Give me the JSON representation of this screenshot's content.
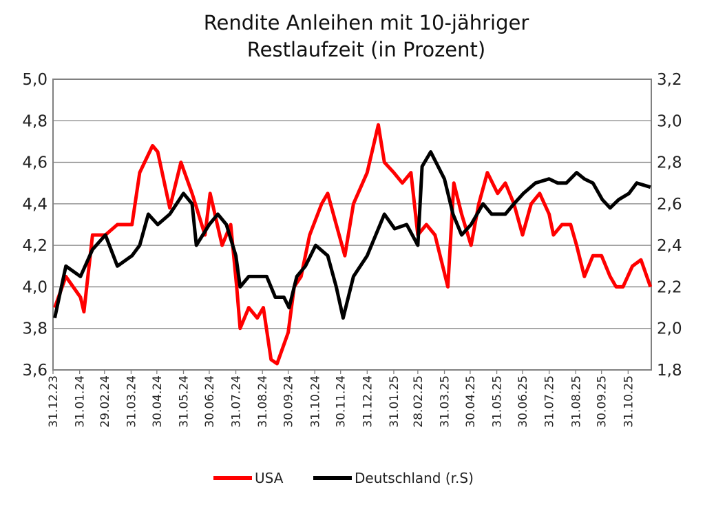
{
  "chart_data": {
    "type": "line",
    "title": [
      "Rendite Anleihen mit 10-jähriger",
      "Restlaufzeit (in Prozent)"
    ],
    "xlabel": "",
    "ylabel": "",
    "y_left": {
      "lim": [
        3.6,
        5.0
      ],
      "ticks": [
        "3,6",
        "3,8",
        "4,0",
        "4,2",
        "4,4",
        "4,6",
        "4,8",
        "5,0"
      ]
    },
    "y_right": {
      "lim": [
        1.8,
        3.2
      ],
      "ticks": [
        "1,8",
        "2,0",
        "2,2",
        "2,4",
        "2,6",
        "2,8",
        "3,0",
        "3,2"
      ]
    },
    "x_ticks": [
      "31.12.23",
      "31.01.24",
      "29.02.24",
      "31.03.24",
      "30.04.24",
      "31.05.24",
      "30.06.24",
      "31.07.24",
      "31.08.24",
      "30.09.24",
      "31.10.24",
      "30.11.24",
      "31.12.24",
      "31.01.25",
      "28.02.25",
      "31.03.25",
      "30.04.25",
      "31.05.25",
      "30.06.25",
      "31.07.25",
      "31.08.25",
      "30.09.25",
      "31.10.25"
    ],
    "grid": true,
    "legend_position": "bottom",
    "series": [
      {
        "name": "USA",
        "axis": "left",
        "color": "#ff0000",
        "points": [
          [
            "2024-01-02",
            3.9
          ],
          [
            "2024-01-15",
            4.05
          ],
          [
            "2024-02-01",
            3.95
          ],
          [
            "2024-02-05",
            3.88
          ],
          [
            "2024-02-15",
            4.25
          ],
          [
            "2024-03-01",
            4.25
          ],
          [
            "2024-03-15",
            4.3
          ],
          [
            "2024-04-01",
            4.3
          ],
          [
            "2024-04-10",
            4.55
          ],
          [
            "2024-04-25",
            4.68
          ],
          [
            "2024-05-01",
            4.65
          ],
          [
            "2024-05-15",
            4.38
          ],
          [
            "2024-05-28",
            4.6
          ],
          [
            "2024-06-10",
            4.45
          ],
          [
            "2024-06-25",
            4.25
          ],
          [
            "2024-07-01",
            4.45
          ],
          [
            "2024-07-15",
            4.2
          ],
          [
            "2024-07-25",
            4.3
          ],
          [
            "2024-08-01",
            4.0
          ],
          [
            "2024-08-05",
            3.8
          ],
          [
            "2024-08-15",
            3.9
          ],
          [
            "2024-08-25",
            3.85
          ],
          [
            "2024-09-01",
            3.9
          ],
          [
            "2024-09-10",
            3.65
          ],
          [
            "2024-09-17",
            3.63
          ],
          [
            "2024-09-30",
            3.78
          ],
          [
            "2024-10-07",
            4.0
          ],
          [
            "2024-10-15",
            4.05
          ],
          [
            "2024-10-25",
            4.25
          ],
          [
            "2024-11-08",
            4.4
          ],
          [
            "2024-11-15",
            4.45
          ],
          [
            "2024-11-25",
            4.3
          ],
          [
            "2024-12-05",
            4.15
          ],
          [
            "2024-12-15",
            4.4
          ],
          [
            "2024-12-31",
            4.55
          ],
          [
            "2025-01-13",
            4.78
          ],
          [
            "2025-01-20",
            4.6
          ],
          [
            "2025-01-31",
            4.55
          ],
          [
            "2025-02-10",
            4.5
          ],
          [
            "2025-02-20",
            4.55
          ],
          [
            "2025-02-28",
            4.25
          ],
          [
            "2025-03-10",
            4.3
          ],
          [
            "2025-03-20",
            4.25
          ],
          [
            "2025-04-04",
            4.0
          ],
          [
            "2025-04-11",
            4.5
          ],
          [
            "2025-04-20",
            4.35
          ],
          [
            "2025-05-01",
            4.2
          ],
          [
            "2025-05-10",
            4.4
          ],
          [
            "2025-05-20",
            4.55
          ],
          [
            "2025-06-01",
            4.45
          ],
          [
            "2025-06-10",
            4.5
          ],
          [
            "2025-06-20",
            4.4
          ],
          [
            "2025-06-30",
            4.25
          ],
          [
            "2025-07-10",
            4.4
          ],
          [
            "2025-07-20",
            4.45
          ],
          [
            "2025-07-31",
            4.35
          ],
          [
            "2025-08-05",
            4.25
          ],
          [
            "2025-08-15",
            4.3
          ],
          [
            "2025-08-25",
            4.3
          ],
          [
            "2025-09-01",
            4.2
          ],
          [
            "2025-09-10",
            4.05
          ],
          [
            "2025-09-20",
            4.15
          ],
          [
            "2025-09-30",
            4.15
          ],
          [
            "2025-10-10",
            4.05
          ],
          [
            "2025-10-17",
            4.0
          ],
          [
            "2025-10-25",
            4.0
          ],
          [
            "2025-11-05",
            4.1
          ],
          [
            "2025-11-15",
            4.13
          ],
          [
            "2025-11-26",
            4.0
          ]
        ]
      },
      {
        "name": "Deutschland (r.S)",
        "axis": "right",
        "color": "#000000",
        "points": [
          [
            "2024-01-02",
            2.05
          ],
          [
            "2024-01-15",
            2.3
          ],
          [
            "2024-02-01",
            2.25
          ],
          [
            "2024-02-15",
            2.38
          ],
          [
            "2024-03-01",
            2.45
          ],
          [
            "2024-03-15",
            2.3
          ],
          [
            "2024-04-01",
            2.35
          ],
          [
            "2024-04-10",
            2.4
          ],
          [
            "2024-04-20",
            2.55
          ],
          [
            "2024-05-01",
            2.5
          ],
          [
            "2024-05-15",
            2.55
          ],
          [
            "2024-05-31",
            2.65
          ],
          [
            "2024-06-10",
            2.6
          ],
          [
            "2024-06-15",
            2.4
          ],
          [
            "2024-06-30",
            2.5
          ],
          [
            "2024-07-10",
            2.55
          ],
          [
            "2024-07-20",
            2.5
          ],
          [
            "2024-07-31",
            2.35
          ],
          [
            "2024-08-05",
            2.2
          ],
          [
            "2024-08-15",
            2.25
          ],
          [
            "2024-08-25",
            2.25
          ],
          [
            "2024-09-05",
            2.25
          ],
          [
            "2024-09-15",
            2.15
          ],
          [
            "2024-09-25",
            2.15
          ],
          [
            "2024-10-01",
            2.1
          ],
          [
            "2024-10-10",
            2.25
          ],
          [
            "2024-10-20",
            2.3
          ],
          [
            "2024-11-01",
            2.4
          ],
          [
            "2024-11-15",
            2.35
          ],
          [
            "2024-11-25",
            2.2
          ],
          [
            "2024-12-03",
            2.05
          ],
          [
            "2024-12-15",
            2.25
          ],
          [
            "2024-12-31",
            2.35
          ],
          [
            "2025-01-10",
            2.45
          ],
          [
            "2025-01-20",
            2.55
          ],
          [
            "2025-02-01",
            2.48
          ],
          [
            "2025-02-15",
            2.5
          ],
          [
            "2025-02-28",
            2.4
          ],
          [
            "2025-03-05",
            2.78
          ],
          [
            "2025-03-15",
            2.85
          ],
          [
            "2025-03-31",
            2.72
          ],
          [
            "2025-04-10",
            2.55
          ],
          [
            "2025-04-20",
            2.45
          ],
          [
            "2025-05-01",
            2.5
          ],
          [
            "2025-05-15",
            2.6
          ],
          [
            "2025-05-25",
            2.55
          ],
          [
            "2025-06-10",
            2.55
          ],
          [
            "2025-06-20",
            2.6
          ],
          [
            "2025-07-01",
            2.65
          ],
          [
            "2025-07-15",
            2.7
          ],
          [
            "2025-07-31",
            2.72
          ],
          [
            "2025-08-10",
            2.7
          ],
          [
            "2025-08-20",
            2.7
          ],
          [
            "2025-09-01",
            2.75
          ],
          [
            "2025-09-10",
            2.72
          ],
          [
            "2025-09-20",
            2.7
          ],
          [
            "2025-10-01",
            2.62
          ],
          [
            "2025-10-10",
            2.58
          ],
          [
            "2025-10-20",
            2.62
          ],
          [
            "2025-11-01",
            2.65
          ],
          [
            "2025-11-10",
            2.7
          ],
          [
            "2025-11-26",
            2.68
          ]
        ]
      }
    ]
  }
}
